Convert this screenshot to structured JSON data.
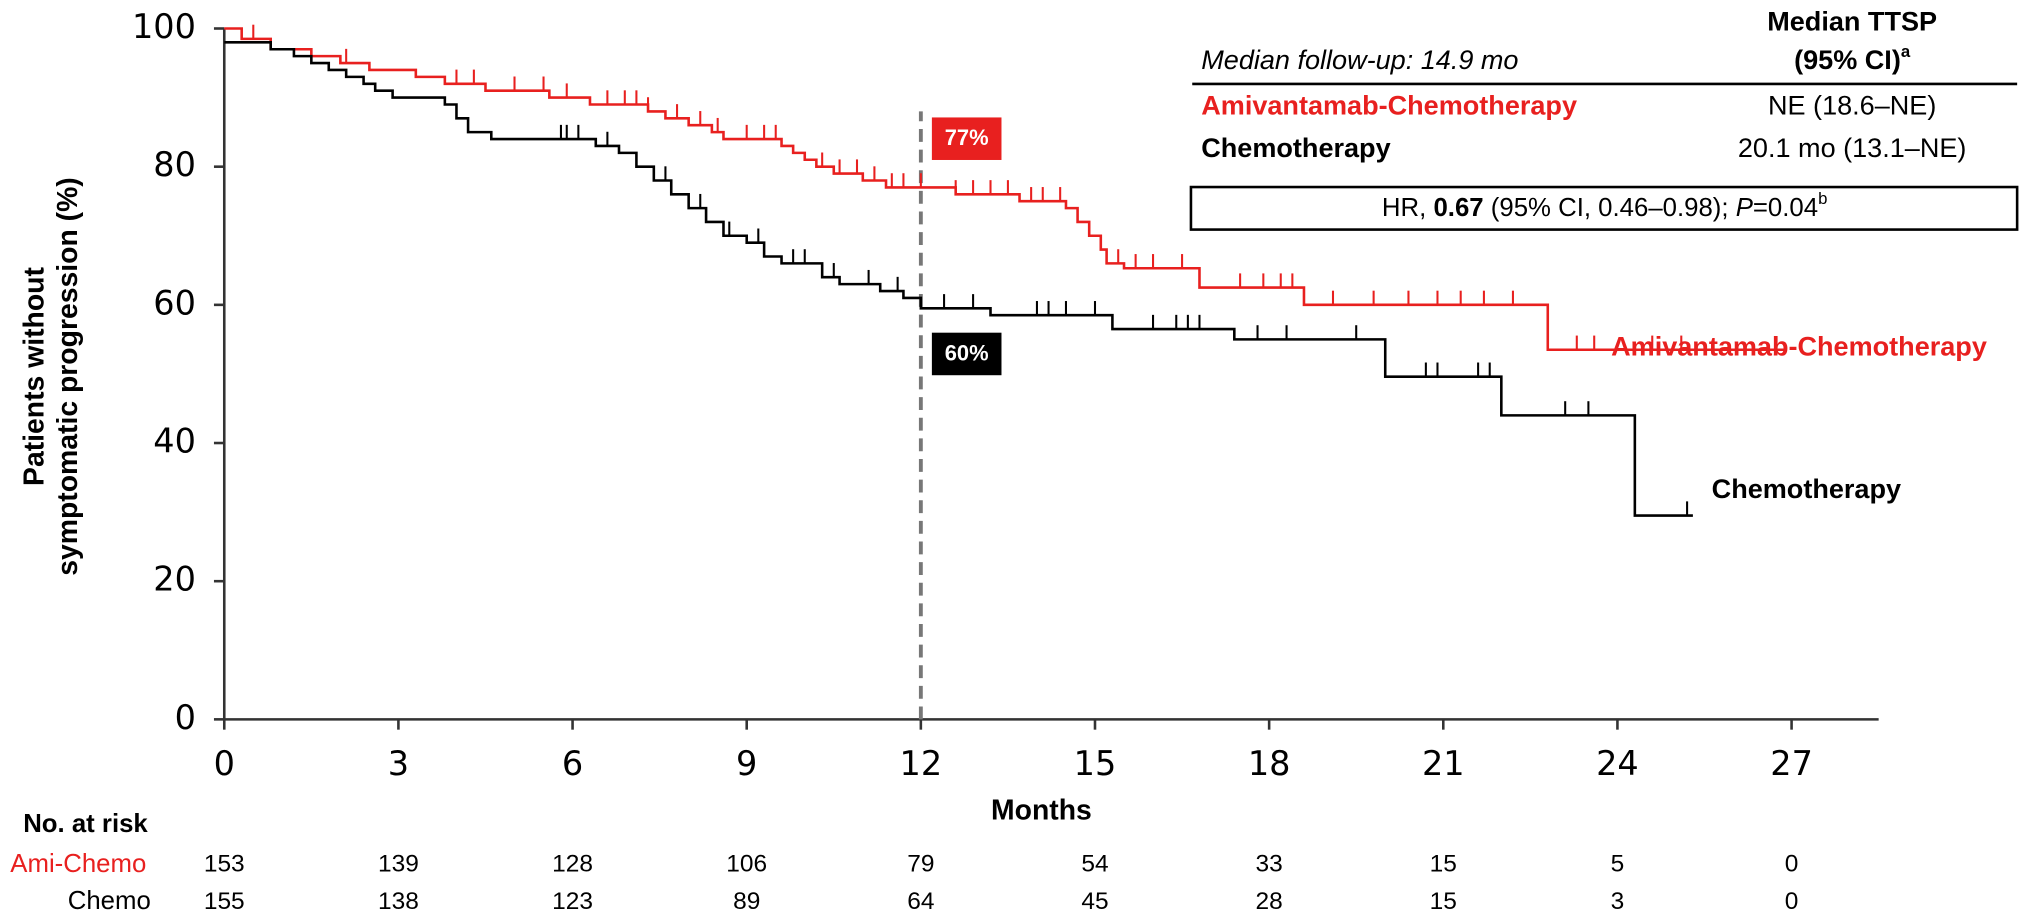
{
  "chart_data": {
    "type": "km",
    "ylabel": [
      "Patients without",
      "symptomatic progression (%)"
    ],
    "xlabel": "Months",
    "xlim": [
      0,
      28.5
    ],
    "ylim": [
      0,
      100
    ],
    "xticks": [
      0,
      3,
      6,
      9,
      12,
      15,
      18,
      21,
      24,
      27
    ],
    "yticks": [
      0,
      20,
      40,
      60,
      80,
      100
    ],
    "landmark_x": 12,
    "series": [
      {
        "name": "Amivantamab-Chemotherapy",
        "color": "#e8201f",
        "x": [
          0,
          0.3,
          0.8,
          1.5,
          2.0,
          2.5,
          3.3,
          3.8,
          4.5,
          5.6,
          6.3,
          7.3,
          7.6,
          8.0,
          8.4,
          8.6,
          9.6,
          9.8,
          10.0,
          10.2,
          10.5,
          11.0,
          11.4,
          12.6,
          13.7,
          14.5,
          14.7,
          14.9,
          15.1,
          15.2,
          15.5,
          16.8,
          18.6,
          22.8,
          26.9
        ],
        "values": [
          100,
          98.5,
          97,
          96,
          95,
          94,
          93,
          92,
          91,
          90,
          89,
          88,
          87,
          86,
          85,
          84,
          83,
          82,
          81,
          80,
          79,
          78,
          77,
          76,
          75,
          74,
          72,
          70,
          68,
          66,
          65.3,
          62.5,
          60,
          53.5,
          53.5
        ],
        "censored": [
          0.5,
          2.1,
          4.0,
          4.3,
          5.0,
          5.5,
          5.9,
          6.6,
          6.9,
          7.1,
          7.3,
          7.8,
          8.2,
          8.5,
          9.0,
          9.3,
          9.5,
          10.3,
          10.6,
          10.9,
          11.2,
          11.5,
          11.7,
          12.0,
          12.6,
          12.9,
          13.2,
          13.5,
          13.9,
          14.1,
          14.4,
          15.4,
          15.7,
          16.0,
          16.5,
          17.5,
          17.9,
          18.2,
          18.4,
          19.1,
          19.8,
          20.4,
          20.9,
          21.3,
          21.7,
          22.2,
          23.3,
          23.6,
          24.6,
          25.1
        ],
        "landmark": {
          "value": 77,
          "label": "77%"
        }
      },
      {
        "name": "Chemotherapy",
        "color": "#000000",
        "x": [
          0,
          0.8,
          1.2,
          1.5,
          1.8,
          2.1,
          2.4,
          2.6,
          2.9,
          3.8,
          4.0,
          4.2,
          4.6,
          6.4,
          6.8,
          7.1,
          7.4,
          7.7,
          8.0,
          8.3,
          8.6,
          9.0,
          9.3,
          9.6,
          10.3,
          10.6,
          11.3,
          11.7,
          12.0,
          13.2,
          15.3,
          17.4,
          20.0,
          22.0,
          24.3,
          25.3
        ],
        "values": [
          98,
          97,
          96,
          95,
          94,
          93,
          92,
          91,
          90,
          89,
          87,
          85,
          84,
          83,
          82,
          80,
          78,
          76,
          74,
          72,
          70,
          69,
          67,
          66,
          64,
          63,
          62,
          61,
          59.5,
          58.5,
          56.5,
          55,
          49.6,
          44,
          29.5,
          29.5
        ],
        "censored": [
          5.8,
          5.9,
          6.1,
          6.6,
          7.6,
          8.2,
          8.3,
          8.7,
          9.2,
          9.8,
          10.0,
          10.5,
          11.1,
          11.6,
          12.4,
          12.9,
          14.0,
          14.2,
          14.5,
          15.0,
          16.0,
          16.4,
          16.6,
          16.8,
          17.8,
          18.3,
          19.5,
          20.7,
          20.9,
          21.6,
          21.8,
          22.0,
          23.1,
          23.5,
          25.2
        ],
        "landmark": {
          "value": 60,
          "label": "60%"
        }
      }
    ],
    "risk_table": {
      "title": "No. at risk",
      "rows": [
        {
          "label": "Ami-Chemo",
          "values": [
            153,
            139,
            128,
            106,
            79,
            54,
            33,
            15,
            5,
            0
          ]
        },
        {
          "label": "Chemo",
          "values": [
            155,
            138,
            123,
            89,
            64,
            45,
            28,
            15,
            3,
            0
          ]
        }
      ]
    },
    "summary": {
      "follow_up": "Median follow-up: 14.9 mo",
      "header": [
        "Median TTSP",
        "(95% CI)",
        "a"
      ],
      "rows": [
        {
          "label": "Amivantamab-Chemotherapy",
          "value": "NE (18.6–NE)"
        },
        {
          "label": "Chemotherapy",
          "value": "20.1 mo (13.1–NE)"
        }
      ],
      "hr": [
        "HR, ",
        "0.67",
        " (95% CI, 0.46–0.98); ",
        "P",
        "=0.04",
        "b"
      ]
    }
  }
}
